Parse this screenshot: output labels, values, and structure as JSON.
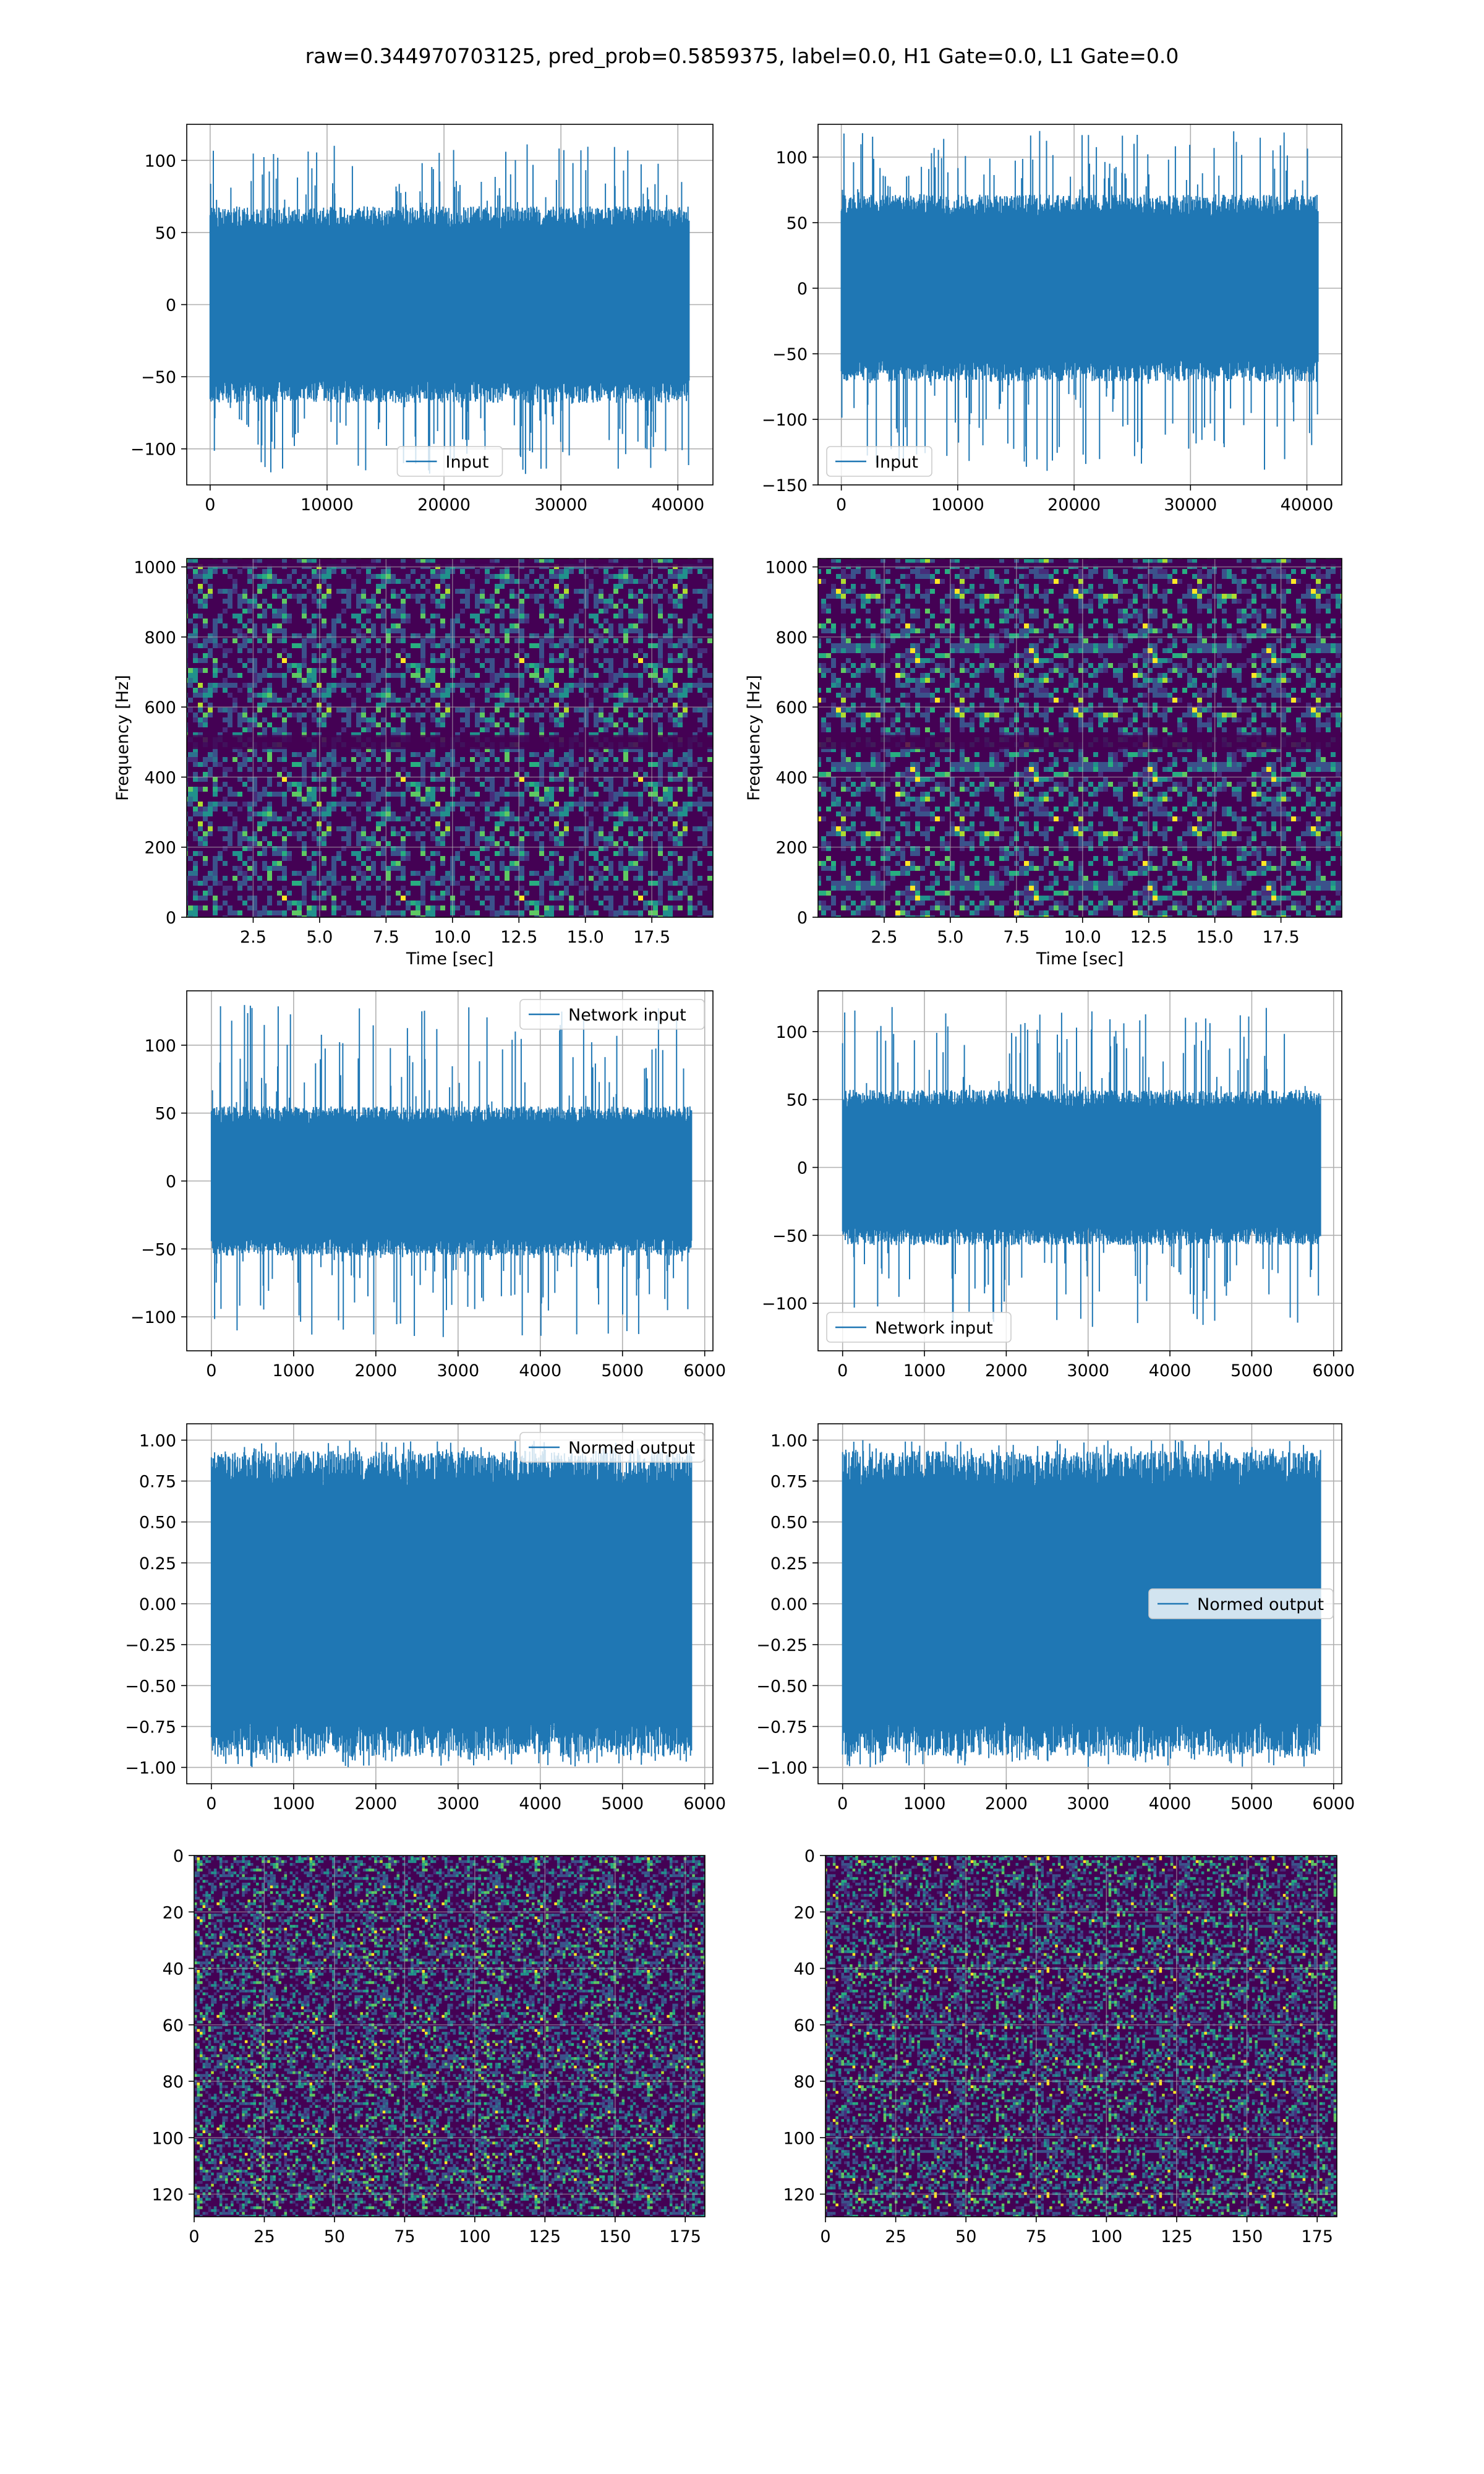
{
  "suptitle": "raw=0.344970703125, pred_prob=0.5859375, label=0.0, H1 Gate=0.0, L1 Gate=0.0",
  "colors": {
    "line": "#1f77b4",
    "grid": "#b0b0b0",
    "viridis_dark": "#440154",
    "viridis_blue": "#3b528b",
    "viridis_teal": "#21918c",
    "viridis_green": "#5ec962",
    "viridis_yellow": "#fde725"
  },
  "chart_data": [
    {
      "id": "p1",
      "type": "line",
      "subtype": "waveform",
      "series": [
        {
          "name": "Input"
        }
      ],
      "legend": "lower center",
      "grid": true,
      "xlim": [
        -2000,
        43000
      ],
      "ylim": [
        -125,
        125
      ],
      "xticks": [
        0,
        10000,
        20000,
        30000,
        40000
      ],
      "yticks": [
        -100,
        -50,
        0,
        50,
        100
      ],
      "signal": {
        "n_samples": 40960,
        "envelope_typical": 62,
        "peak_max": 112,
        "peak_min": -118
      }
    },
    {
      "id": "p2",
      "type": "line",
      "subtype": "waveform",
      "series": [
        {
          "name": "Input"
        }
      ],
      "legend": "lower left",
      "grid": true,
      "xlim": [
        -2000,
        43000
      ],
      "ylim": [
        -150,
        125
      ],
      "xticks": [
        0,
        10000,
        20000,
        30000,
        40000
      ],
      "yticks": [
        -150,
        -100,
        -50,
        0,
        50,
        100
      ],
      "signal": {
        "n_samples": 40960,
        "envelope_typical": 65,
        "peak_max": 120,
        "peak_min": -140
      }
    },
    {
      "id": "p3",
      "type": "heatmap",
      "subtype": "spectrogram",
      "grid": true,
      "xlim": [
        0,
        19.8
      ],
      "ylim": [
        0,
        1024
      ],
      "xticks": [
        2.5,
        5.0,
        7.5,
        10.0,
        12.5,
        15.0,
        17.5
      ],
      "yticks": [
        0,
        200,
        400,
        600,
        800,
        1000
      ],
      "xlabel": "Time [sec]",
      "ylabel": "Frequency [Hz]"
    },
    {
      "id": "p4",
      "type": "heatmap",
      "subtype": "spectrogram",
      "grid": true,
      "xlim": [
        0,
        19.8
      ],
      "ylim": [
        0,
        1024
      ],
      "xticks": [
        2.5,
        5.0,
        7.5,
        10.0,
        12.5,
        15.0,
        17.5
      ],
      "yticks": [
        0,
        200,
        400,
        600,
        800,
        1000
      ],
      "xlabel": "Time [sec]",
      "ylabel": "Frequency [Hz]"
    },
    {
      "id": "p5",
      "type": "line",
      "subtype": "waveform",
      "series": [
        {
          "name": "Network input"
        }
      ],
      "legend": "upper right",
      "grid": true,
      "xlim": [
        -300,
        6100
      ],
      "ylim": [
        -125,
        140
      ],
      "xticks": [
        0,
        1000,
        2000,
        3000,
        4000,
        5000,
        6000
      ],
      "yticks": [
        -100,
        -50,
        0,
        50,
        100
      ],
      "signal": {
        "n_samples": 5840,
        "envelope_typical": 50,
        "peak_max": 130,
        "peak_min": -115
      }
    },
    {
      "id": "p6",
      "type": "line",
      "subtype": "waveform",
      "series": [
        {
          "name": "Network input"
        }
      ],
      "legend": "lower left",
      "grid": true,
      "xlim": [
        -300,
        6100
      ],
      "ylim": [
        -135,
        130
      ],
      "xticks": [
        0,
        1000,
        2000,
        3000,
        4000,
        5000,
        6000
      ],
      "yticks": [
        -100,
        -50,
        0,
        50,
        100
      ],
      "signal": {
        "n_samples": 5840,
        "envelope_typical": 52,
        "peak_max": 120,
        "peak_min": -118
      }
    },
    {
      "id": "p7",
      "type": "line",
      "subtype": "waveform",
      "series": [
        {
          "name": "Normed output"
        }
      ],
      "legend": "upper right",
      "grid": true,
      "xlim": [
        -300,
        6100
      ],
      "ylim": [
        -1.1,
        1.1
      ],
      "xticks": [
        0,
        1000,
        2000,
        3000,
        4000,
        5000,
        6000
      ],
      "yticks": [
        -1.0,
        -0.75,
        -0.5,
        -0.25,
        0.0,
        0.25,
        0.5,
        0.75,
        1.0
      ],
      "signal": {
        "n_samples": 5840,
        "envelope_typical": 0.85,
        "peak_max": 1.0,
        "peak_min": -1.0
      }
    },
    {
      "id": "p8",
      "type": "line",
      "subtype": "waveform",
      "series": [
        {
          "name": "Normed output"
        }
      ],
      "legend": "center right",
      "grid": true,
      "xlim": [
        -300,
        6100
      ],
      "ylim": [
        -1.1,
        1.1
      ],
      "xticks": [
        0,
        1000,
        2000,
        3000,
        4000,
        5000,
        6000
      ],
      "yticks": [
        -1.0,
        -0.75,
        -0.5,
        -0.25,
        0.0,
        0.25,
        0.5,
        0.75,
        1.0
      ],
      "signal": {
        "n_samples": 5840,
        "envelope_typical": 0.85,
        "peak_max": 1.0,
        "peak_min": -1.0
      }
    },
    {
      "id": "p9",
      "type": "heatmap",
      "subtype": "image",
      "grid": true,
      "xlim": [
        0,
        182
      ],
      "ylim": [
        128,
        0
      ],
      "xticks": [
        0,
        25,
        50,
        75,
        100,
        125,
        150,
        175
      ],
      "yticks": [
        0,
        20,
        40,
        60,
        80,
        100,
        120
      ]
    },
    {
      "id": "p10",
      "type": "heatmap",
      "subtype": "image",
      "grid": true,
      "xlim": [
        0,
        182
      ],
      "ylim": [
        128,
        0
      ],
      "xticks": [
        0,
        25,
        50,
        75,
        100,
        125,
        150,
        175
      ],
      "yticks": [
        0,
        20,
        40,
        60,
        80,
        100,
        120
      ]
    }
  ]
}
